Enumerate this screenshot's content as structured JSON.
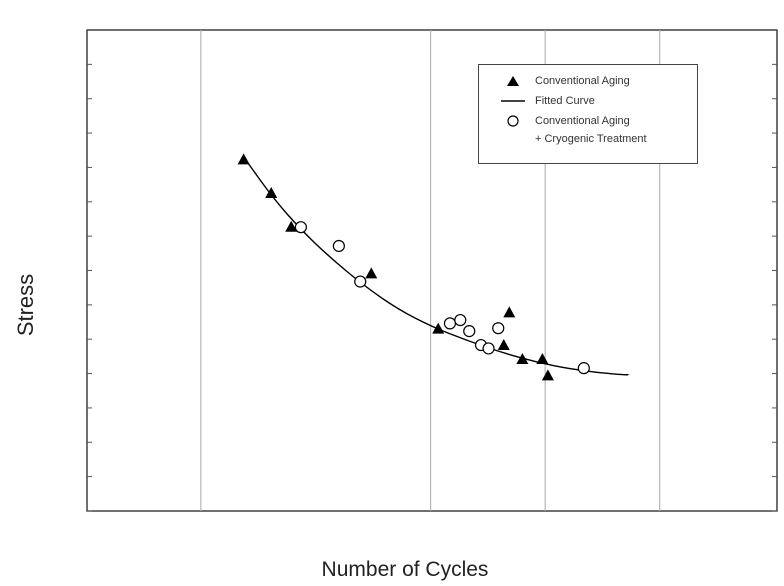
{
  "chart_data": {
    "type": "scatter",
    "title": "",
    "xlabel": "Number of Cycles",
    "ylabel": "Stress",
    "xlim": [
      0,
      1
    ],
    "ylim": [
      0,
      1
    ],
    "grid": "vertical",
    "legend_position": "top-right",
    "series": [
      {
        "name": "Conventional Aging",
        "marker": "filled-triangle",
        "color": "#000000",
        "points": [
          {
            "x": 0.227,
            "y": 0.73
          },
          {
            "x": 0.267,
            "y": 0.66
          },
          {
            "x": 0.296,
            "y": 0.59
          },
          {
            "x": 0.412,
            "y": 0.493
          },
          {
            "x": 0.509,
            "y": 0.378
          },
          {
            "x": 0.604,
            "y": 0.344
          },
          {
            "x": 0.612,
            "y": 0.412
          },
          {
            "x": 0.631,
            "y": 0.315
          },
          {
            "x": 0.66,
            "y": 0.315
          },
          {
            "x": 0.668,
            "y": 0.281
          }
        ]
      },
      {
        "name": "Fitted Curve",
        "marker": "line",
        "color": "#000000",
        "points": [
          {
            "x": 0.23,
            "y": 0.73
          },
          {
            "x": 0.27,
            "y": 0.65
          },
          {
            "x": 0.31,
            "y": 0.585
          },
          {
            "x": 0.35,
            "y": 0.53
          },
          {
            "x": 0.4,
            "y": 0.47
          },
          {
            "x": 0.45,
            "y": 0.42
          },
          {
            "x": 0.5,
            "y": 0.383
          },
          {
            "x": 0.55,
            "y": 0.355
          },
          {
            "x": 0.6,
            "y": 0.33
          },
          {
            "x": 0.65,
            "y": 0.31
          },
          {
            "x": 0.7,
            "y": 0.295
          },
          {
            "x": 0.76,
            "y": 0.285
          },
          {
            "x": 0.785,
            "y": 0.283
          }
        ]
      },
      {
        "name": "Conventional Aging\n+ Cryogenic Treatment",
        "marker": "open-circle",
        "color": "#000000",
        "points": [
          {
            "x": 0.31,
            "y": 0.59
          },
          {
            "x": 0.365,
            "y": 0.551
          },
          {
            "x": 0.396,
            "y": 0.477
          },
          {
            "x": 0.526,
            "y": 0.39
          },
          {
            "x": 0.541,
            "y": 0.397
          },
          {
            "x": 0.554,
            "y": 0.374
          },
          {
            "x": 0.571,
            "y": 0.345
          },
          {
            "x": 0.582,
            "y": 0.338
          },
          {
            "x": 0.596,
            "y": 0.38
          },
          {
            "x": 0.72,
            "y": 0.297
          }
        ]
      }
    ],
    "legend": [
      {
        "label": "Conventional Aging",
        "symbol": "filled-triangle"
      },
      {
        "label": "Fitted Curve",
        "symbol": "line"
      },
      {
        "label": "Conventional Aging",
        "symbol": "open-circle"
      },
      {
        "label": "+ Cryogenic Treatment",
        "symbol": "none"
      }
    ]
  }
}
